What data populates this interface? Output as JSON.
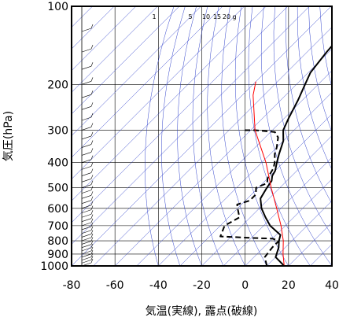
{
  "chart_data": {
    "type": "line",
    "xlabel": "気温(実線), 露点(破線)",
    "ylabel": "気圧(hPa)",
    "xlim": [
      -80,
      40
    ],
    "ylim": [
      1000,
      100
    ],
    "y_scale": "log",
    "x_ticks": [
      -80,
      -60,
      -40,
      -20,
      0,
      20,
      40
    ],
    "y_ticks": [
      100,
      200,
      300,
      400,
      500,
      600,
      700,
      800,
      900,
      1000
    ],
    "grid": true,
    "mixing_ratio_labels": [
      "1",
      "5",
      "10",
      "15",
      "20",
      "g"
    ],
    "colors": {
      "temperature": "#000000",
      "dewpoint": "#000000",
      "parcel": "#ff0000",
      "guides": "#3344cc",
      "grid": "#000000"
    },
    "series": [
      {
        "style": "solid",
        "points": [
          [
            18,
            1000
          ],
          [
            10,
            925
          ],
          [
            7,
            850
          ],
          [
            4,
            800
          ],
          [
            2,
            760
          ],
          [
            -7,
            700
          ],
          [
            -13,
            650
          ],
          [
            -19,
            600
          ],
          [
            -24,
            550
          ],
          [
            -26,
            500
          ],
          [
            -27,
            470
          ],
          [
            -29,
            450
          ],
          [
            -30,
            430
          ],
          [
            -33,
            400
          ],
          [
            -36,
            370
          ],
          [
            -40,
            330
          ],
          [
            -45,
            300
          ],
          [
            -48,
            270
          ],
          [
            -52,
            230
          ],
          [
            -56,
            200
          ],
          [
            -59,
            180
          ],
          [
            -61,
            150
          ],
          [
            -62,
            130
          ],
          [
            -60,
            115
          ],
          [
            -60,
            100
          ]
        ]
      },
      {
        "style": "dashed",
        "points": [
          [
            10,
            1000
          ],
          [
            5,
            925
          ],
          [
            4,
            850
          ],
          [
            4,
            800
          ],
          [
            0,
            785
          ],
          [
            -10,
            780
          ],
          [
            -25,
            770
          ],
          [
            -28,
            700
          ],
          [
            -25,
            650
          ],
          [
            -30,
            600
          ],
          [
            -32,
            580
          ],
          [
            -28,
            560
          ],
          [
            -28,
            530
          ],
          [
            -31,
            500
          ],
          [
            -28,
            480
          ],
          [
            -30,
            460
          ],
          [
            -31,
            440
          ],
          [
            -32,
            420
          ],
          [
            -34,
            400
          ],
          [
            -38,
            370
          ],
          [
            -40,
            350
          ],
          [
            -44,
            320
          ],
          [
            -48,
            305
          ],
          [
            -58,
            300
          ],
          [
            -64,
            300
          ]
        ]
      },
      {
        "style": "solid",
        "points": [
          [
            18,
            1000
          ],
          [
            12,
            900
          ],
          [
            6,
            800
          ],
          [
            -2,
            700
          ],
          [
            -12,
            600
          ],
          [
            -24,
            500
          ],
          [
            -38,
            400
          ],
          [
            -58,
            300
          ],
          [
            -75,
            220
          ],
          [
            -80,
            195
          ]
        ]
      }
    ],
    "barbs": "left-side wind barbs from 100 to 1000 hPa"
  }
}
